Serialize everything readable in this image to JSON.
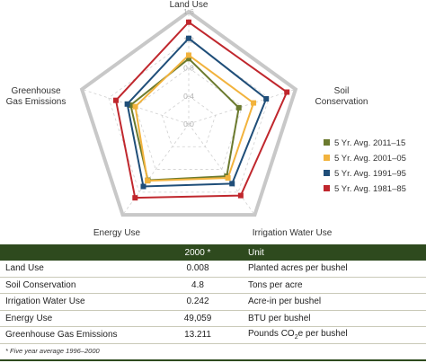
{
  "chart_data": {
    "type": "radar",
    "axes": [
      "Land Use",
      "Soil Conservation",
      "Irrigation Water Use",
      "Energy Use",
      "Greenhouse Gas Emissions"
    ],
    "axis_labels": {
      "land_use": "Land Use",
      "soil_conservation": [
        "Soil",
        "Conservation"
      ],
      "irrigation": "Irrigation Water Use",
      "energy": "Energy Use",
      "ghg": [
        "Greenhouse",
        "Gas Emissions"
      ]
    },
    "ticks": [
      "0.0",
      "0.4",
      "0.8",
      "1.2",
      "1.6"
    ],
    "tick_values": [
      0.0,
      0.4,
      0.8,
      1.2,
      1.6
    ],
    "rlim": [
      0,
      1.6
    ],
    "legend_position": "right",
    "series": [
      {
        "name": "5 Yr. Avg. 2011–15",
        "color": "#6b7a2e",
        "values": [
          0.93,
          0.75,
          0.92,
          0.99,
          0.87
        ]
      },
      {
        "name": "5 Yr. Avg. 2001–05",
        "color": "#f2b33d",
        "values": [
          0.98,
          0.97,
          0.95,
          1.0,
          0.8
        ]
      },
      {
        "name": "5 Yr. Avg. 1991–95",
        "color": "#1f4e79",
        "values": [
          1.22,
          1.16,
          1.05,
          1.1,
          0.92
        ]
      },
      {
        "name": "5 Yr. Avg. 1981–85",
        "color": "#c0272d",
        "values": [
          1.45,
          1.47,
          1.26,
          1.3,
          1.09
        ]
      }
    ]
  },
  "table": {
    "headers": [
      "",
      "2000 *",
      "Unit"
    ],
    "rows": [
      {
        "metric": "Land Use",
        "value": "0.008",
        "unit": "Planted acres per bushel"
      },
      {
        "metric": "Soil Conservation",
        "value": "4.8",
        "unit": "Tons per acre"
      },
      {
        "metric": "Irrigation Water Use",
        "value": "0.242",
        "unit": "Acre-in per bushel"
      },
      {
        "metric": "Energy Use",
        "value": "49,059",
        "unit": "BTU per bushel"
      },
      {
        "metric": "Greenhouse Gas Emissions",
        "value": "13.211",
        "unit_pre": "Pounds CO",
        "unit_sub": "2",
        "unit_post": "e per bushel"
      }
    ],
    "footnote": "* Five year average 1996–2000"
  }
}
